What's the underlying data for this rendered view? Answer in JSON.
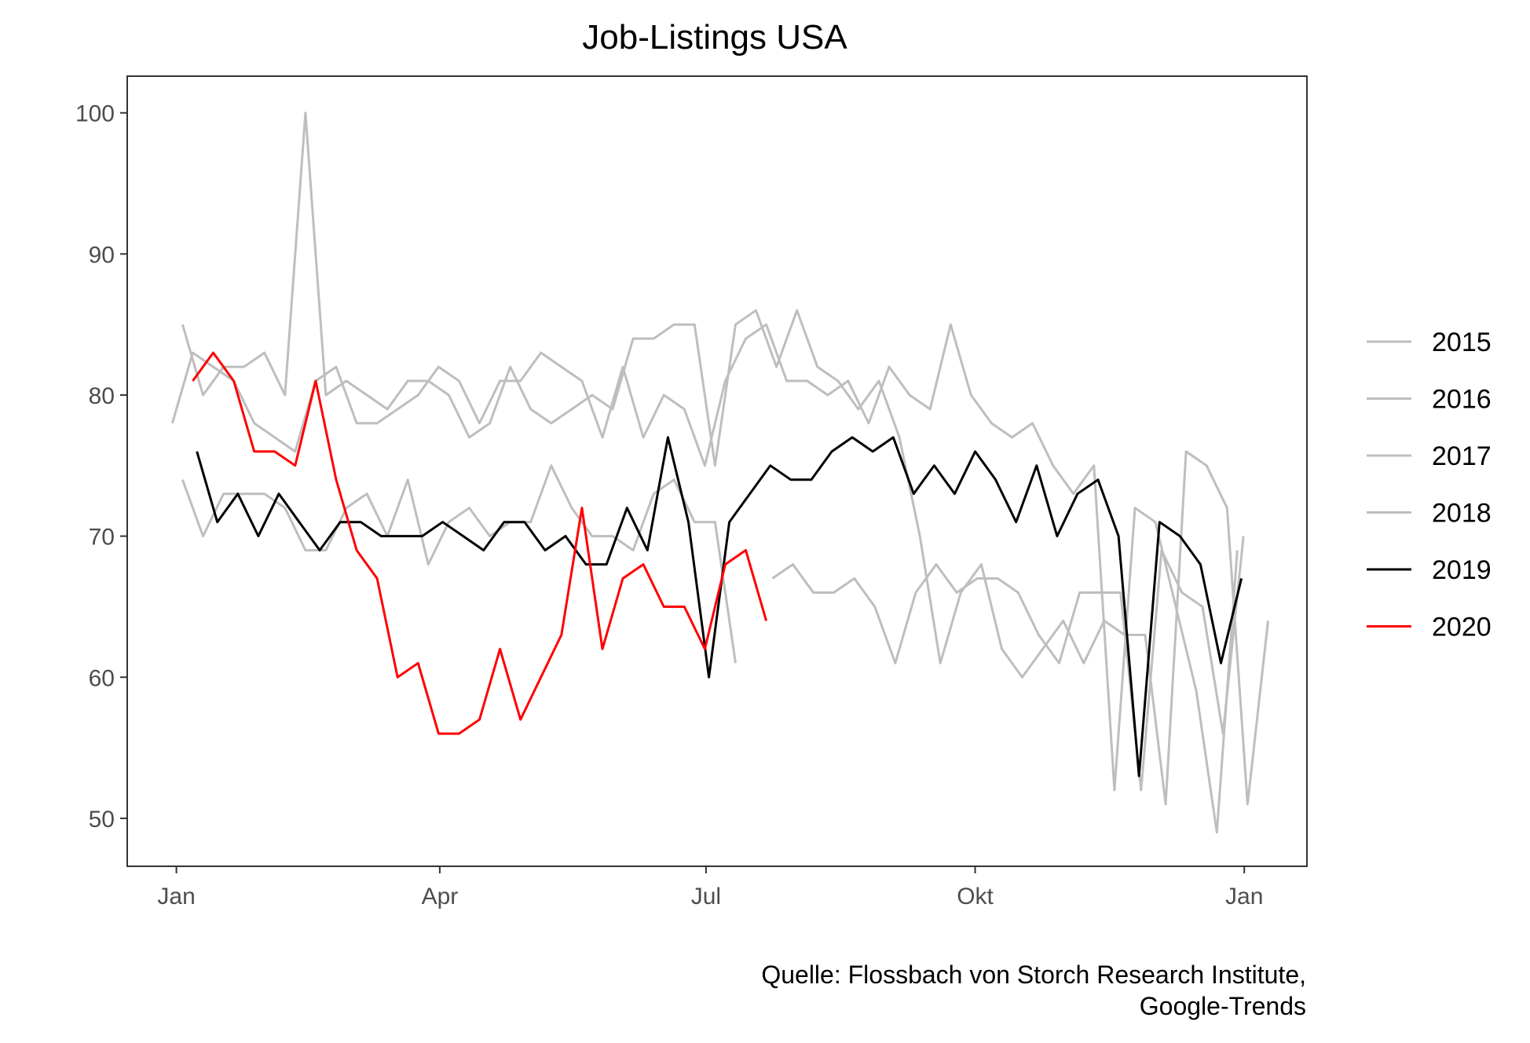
{
  "chart_data": {
    "type": "line",
    "title": "Job-Listings USA",
    "xlabel": "",
    "ylabel": "",
    "x_ticks": [
      {
        "label": "Jan",
        "week": 0
      },
      {
        "label": "Apr",
        "week": 12.86
      },
      {
        "label": "Jul",
        "week": 25.86
      },
      {
        "label": "Okt",
        "week": 39
      },
      {
        "label": "Jan",
        "week": 52.14
      }
    ],
    "xlim": [
      -2.4,
      55.2
    ],
    "ylim": [
      46.6,
      102.6
    ],
    "y_ticks": [
      50,
      60,
      70,
      80,
      90,
      100
    ],
    "grid": false,
    "legend_position": "right",
    "source": [
      "Quelle: Flossbach von Storch Research Institute,",
      "Google-Trends"
    ],
    "series": [
      {
        "name": "2015",
        "color": "#bebebe",
        "values": [
          [
            0.3,
            85
          ],
          [
            1.3,
            80
          ],
          [
            2.3,
            82
          ],
          [
            3.3,
            82
          ],
          [
            4.3,
            83
          ],
          [
            5.3,
            80
          ],
          [
            6.3,
            100
          ],
          [
            7.3,
            80
          ],
          [
            8.3,
            81
          ],
          [
            9.3,
            80
          ],
          [
            10.3,
            79
          ],
          [
            11.3,
            81
          ],
          [
            12.3,
            81
          ],
          [
            13.3,
            80
          ],
          [
            14.3,
            77
          ],
          [
            15.3,
            78
          ],
          [
            16.3,
            82
          ],
          [
            17.3,
            79
          ],
          [
            18.3,
            78
          ],
          [
            19.3,
            79
          ],
          [
            20.3,
            80
          ],
          [
            21.3,
            79
          ],
          [
            22.3,
            84
          ],
          [
            23.3,
            84
          ],
          [
            24.3,
            85
          ],
          [
            25.3,
            85
          ],
          [
            26.3,
            75
          ],
          [
            27.3,
            85
          ],
          [
            28.3,
            86
          ],
          [
            29.3,
            82
          ],
          [
            30.3,
            86
          ],
          [
            31.3,
            82
          ],
          [
            32.3,
            81
          ],
          [
            33.3,
            79
          ],
          [
            34.3,
            81
          ],
          [
            35.3,
            77
          ],
          [
            36.3,
            70
          ],
          [
            37.3,
            61
          ],
          [
            38.3,
            66
          ],
          [
            39.3,
            68
          ],
          [
            40.3,
            62
          ],
          [
            41.3,
            60
          ],
          [
            42.3,
            62
          ],
          [
            43.3,
            64
          ],
          [
            44.3,
            61
          ],
          [
            45.3,
            64
          ],
          [
            46.3,
            63
          ],
          [
            47.3,
            63
          ],
          [
            48.3,
            51
          ],
          [
            49.3,
            76
          ],
          [
            50.3,
            75
          ],
          [
            51.3,
            72
          ],
          [
            52.3,
            51
          ],
          [
            53.3,
            64
          ]
        ]
      },
      {
        "name": "2016",
        "color": "#bebebe",
        "values": [
          [
            0.3,
            74
          ],
          [
            1.3,
            70
          ],
          [
            2.3,
            73
          ],
          [
            3.3,
            73
          ],
          [
            4.3,
            73
          ],
          [
            5.3,
            72
          ],
          [
            6.3,
            69
          ],
          [
            7.3,
            69
          ],
          [
            8.3,
            72
          ],
          [
            9.3,
            73
          ],
          [
            10.3,
            70
          ],
          [
            11.3,
            74
          ],
          [
            12.3,
            68
          ],
          [
            13.3,
            71
          ],
          [
            14.3,
            72
          ],
          [
            15.3,
            70
          ],
          [
            16.3,
            71
          ],
          [
            17.3,
            71
          ],
          [
            18.3,
            75
          ],
          [
            19.3,
            72
          ],
          [
            20.3,
            70
          ],
          [
            21.3,
            70
          ],
          [
            22.3,
            69
          ],
          [
            23.3,
            73
          ],
          [
            24.3,
            74
          ],
          [
            25.3,
            71
          ],
          [
            26.3,
            71
          ],
          [
            27.3,
            61
          ]
        ]
      },
      {
        "name": "2017",
        "color": "#bebebe",
        "values": [
          [
            -0.2,
            78
          ],
          [
            0.8,
            83
          ],
          [
            1.8,
            82
          ],
          [
            2.8,
            81
          ],
          [
            3.8,
            78
          ],
          [
            4.8,
            77
          ],
          [
            5.8,
            76
          ],
          [
            6.8,
            81
          ],
          [
            7.8,
            82
          ],
          [
            8.8,
            78
          ],
          [
            9.8,
            78
          ],
          [
            10.8,
            79
          ],
          [
            11.8,
            80
          ],
          [
            12.8,
            82
          ],
          [
            13.8,
            81
          ],
          [
            14.8,
            78
          ],
          [
            15.8,
            81
          ],
          [
            16.8,
            81
          ],
          [
            17.8,
            83
          ],
          [
            18.8,
            82
          ],
          [
            19.8,
            81
          ],
          [
            20.8,
            77
          ],
          [
            21.8,
            82
          ],
          [
            22.8,
            77
          ],
          [
            23.8,
            80
          ],
          [
            24.8,
            79
          ],
          [
            25.8,
            75
          ],
          [
            26.8,
            81
          ],
          [
            27.8,
            84
          ],
          [
            28.8,
            85
          ],
          [
            29.8,
            81
          ],
          [
            30.8,
            81
          ],
          [
            31.8,
            80
          ],
          [
            32.8,
            81
          ],
          [
            33.8,
            78
          ],
          [
            34.8,
            82
          ],
          [
            35.8,
            80
          ],
          [
            36.8,
            79
          ],
          [
            37.8,
            85
          ],
          [
            38.8,
            80
          ],
          [
            39.8,
            78
          ],
          [
            40.8,
            77
          ],
          [
            41.8,
            78
          ],
          [
            42.8,
            75
          ],
          [
            43.8,
            73
          ],
          [
            44.8,
            75
          ],
          [
            45.8,
            52
          ],
          [
            46.8,
            72
          ],
          [
            47.8,
            71
          ],
          [
            48.8,
            65
          ],
          [
            49.8,
            59
          ],
          [
            50.8,
            49
          ],
          [
            51.8,
            69
          ]
        ]
      },
      {
        "name": "2018",
        "color": "#bebebe",
        "values": [
          [
            29.1,
            67
          ],
          [
            30.1,
            68
          ],
          [
            31.1,
            66
          ],
          [
            32.1,
            66
          ],
          [
            33.1,
            67
          ],
          [
            34.1,
            65
          ],
          [
            35.1,
            61
          ],
          [
            36.1,
            66
          ],
          [
            37.1,
            68
          ],
          [
            38.1,
            66
          ],
          [
            39.1,
            67
          ],
          [
            40.1,
            67
          ],
          [
            41.1,
            66
          ],
          [
            42.1,
            63
          ],
          [
            43.1,
            61
          ],
          [
            44.1,
            66
          ],
          [
            45.1,
            66
          ],
          [
            46.1,
            66
          ],
          [
            47.1,
            52
          ],
          [
            48.1,
            69
          ],
          [
            49.1,
            66
          ],
          [
            50.1,
            65
          ],
          [
            51.1,
            56
          ],
          [
            52.1,
            70
          ]
        ]
      },
      {
        "name": "2019",
        "color": "#000000",
        "values": [
          [
            1,
            76
          ],
          [
            2,
            71
          ],
          [
            3,
            73
          ],
          [
            4,
            70
          ],
          [
            5,
            73
          ],
          [
            6,
            71
          ],
          [
            7,
            69
          ],
          [
            8,
            71
          ],
          [
            9,
            71
          ],
          [
            10,
            70
          ],
          [
            11,
            70
          ],
          [
            12,
            70
          ],
          [
            13,
            71
          ],
          [
            14,
            70
          ],
          [
            15,
            69
          ],
          [
            16,
            71
          ],
          [
            17,
            71
          ],
          [
            18,
            69
          ],
          [
            19,
            70
          ],
          [
            20,
            68
          ],
          [
            21,
            68
          ],
          [
            22,
            72
          ],
          [
            23,
            69
          ],
          [
            24,
            77
          ],
          [
            25,
            71
          ],
          [
            26,
            60
          ],
          [
            27,
            71
          ],
          [
            28,
            73
          ],
          [
            29,
            75
          ],
          [
            30,
            74
          ],
          [
            31,
            74
          ],
          [
            32,
            76
          ],
          [
            33,
            77
          ],
          [
            34,
            76
          ],
          [
            35,
            77
          ],
          [
            36,
            73
          ],
          [
            37,
            75
          ],
          [
            38,
            73
          ],
          [
            39,
            76
          ],
          [
            40,
            74
          ],
          [
            41,
            71
          ],
          [
            42,
            75
          ],
          [
            43,
            70
          ],
          [
            44,
            73
          ],
          [
            45,
            74
          ],
          [
            46,
            70
          ],
          [
            47,
            53
          ],
          [
            48,
            71
          ],
          [
            49,
            70
          ],
          [
            50,
            68
          ],
          [
            51,
            61
          ],
          [
            52,
            67
          ]
        ]
      },
      {
        "name": "2020",
        "color": "#ff0000",
        "values": [
          [
            0.8,
            81
          ],
          [
            1.8,
            83
          ],
          [
            2.8,
            81
          ],
          [
            3.8,
            76
          ],
          [
            4.8,
            76
          ],
          [
            5.8,
            75
          ],
          [
            6.8,
            81
          ],
          [
            7.8,
            74
          ],
          [
            8.8,
            69
          ],
          [
            9.8,
            67
          ],
          [
            10.8,
            60
          ],
          [
            11.8,
            61
          ],
          [
            12.8,
            56
          ],
          [
            13.8,
            56
          ],
          [
            14.8,
            57
          ],
          [
            15.8,
            62
          ],
          [
            16.8,
            57
          ],
          [
            17.8,
            60
          ],
          [
            18.8,
            63
          ],
          [
            19.8,
            72
          ],
          [
            20.8,
            62
          ],
          [
            21.8,
            67
          ],
          [
            22.8,
            68
          ],
          [
            23.8,
            65
          ],
          [
            24.8,
            65
          ],
          [
            25.8,
            62
          ],
          [
            26.8,
            68
          ],
          [
            27.8,
            69
          ],
          [
            28.8,
            64
          ]
        ]
      }
    ]
  }
}
